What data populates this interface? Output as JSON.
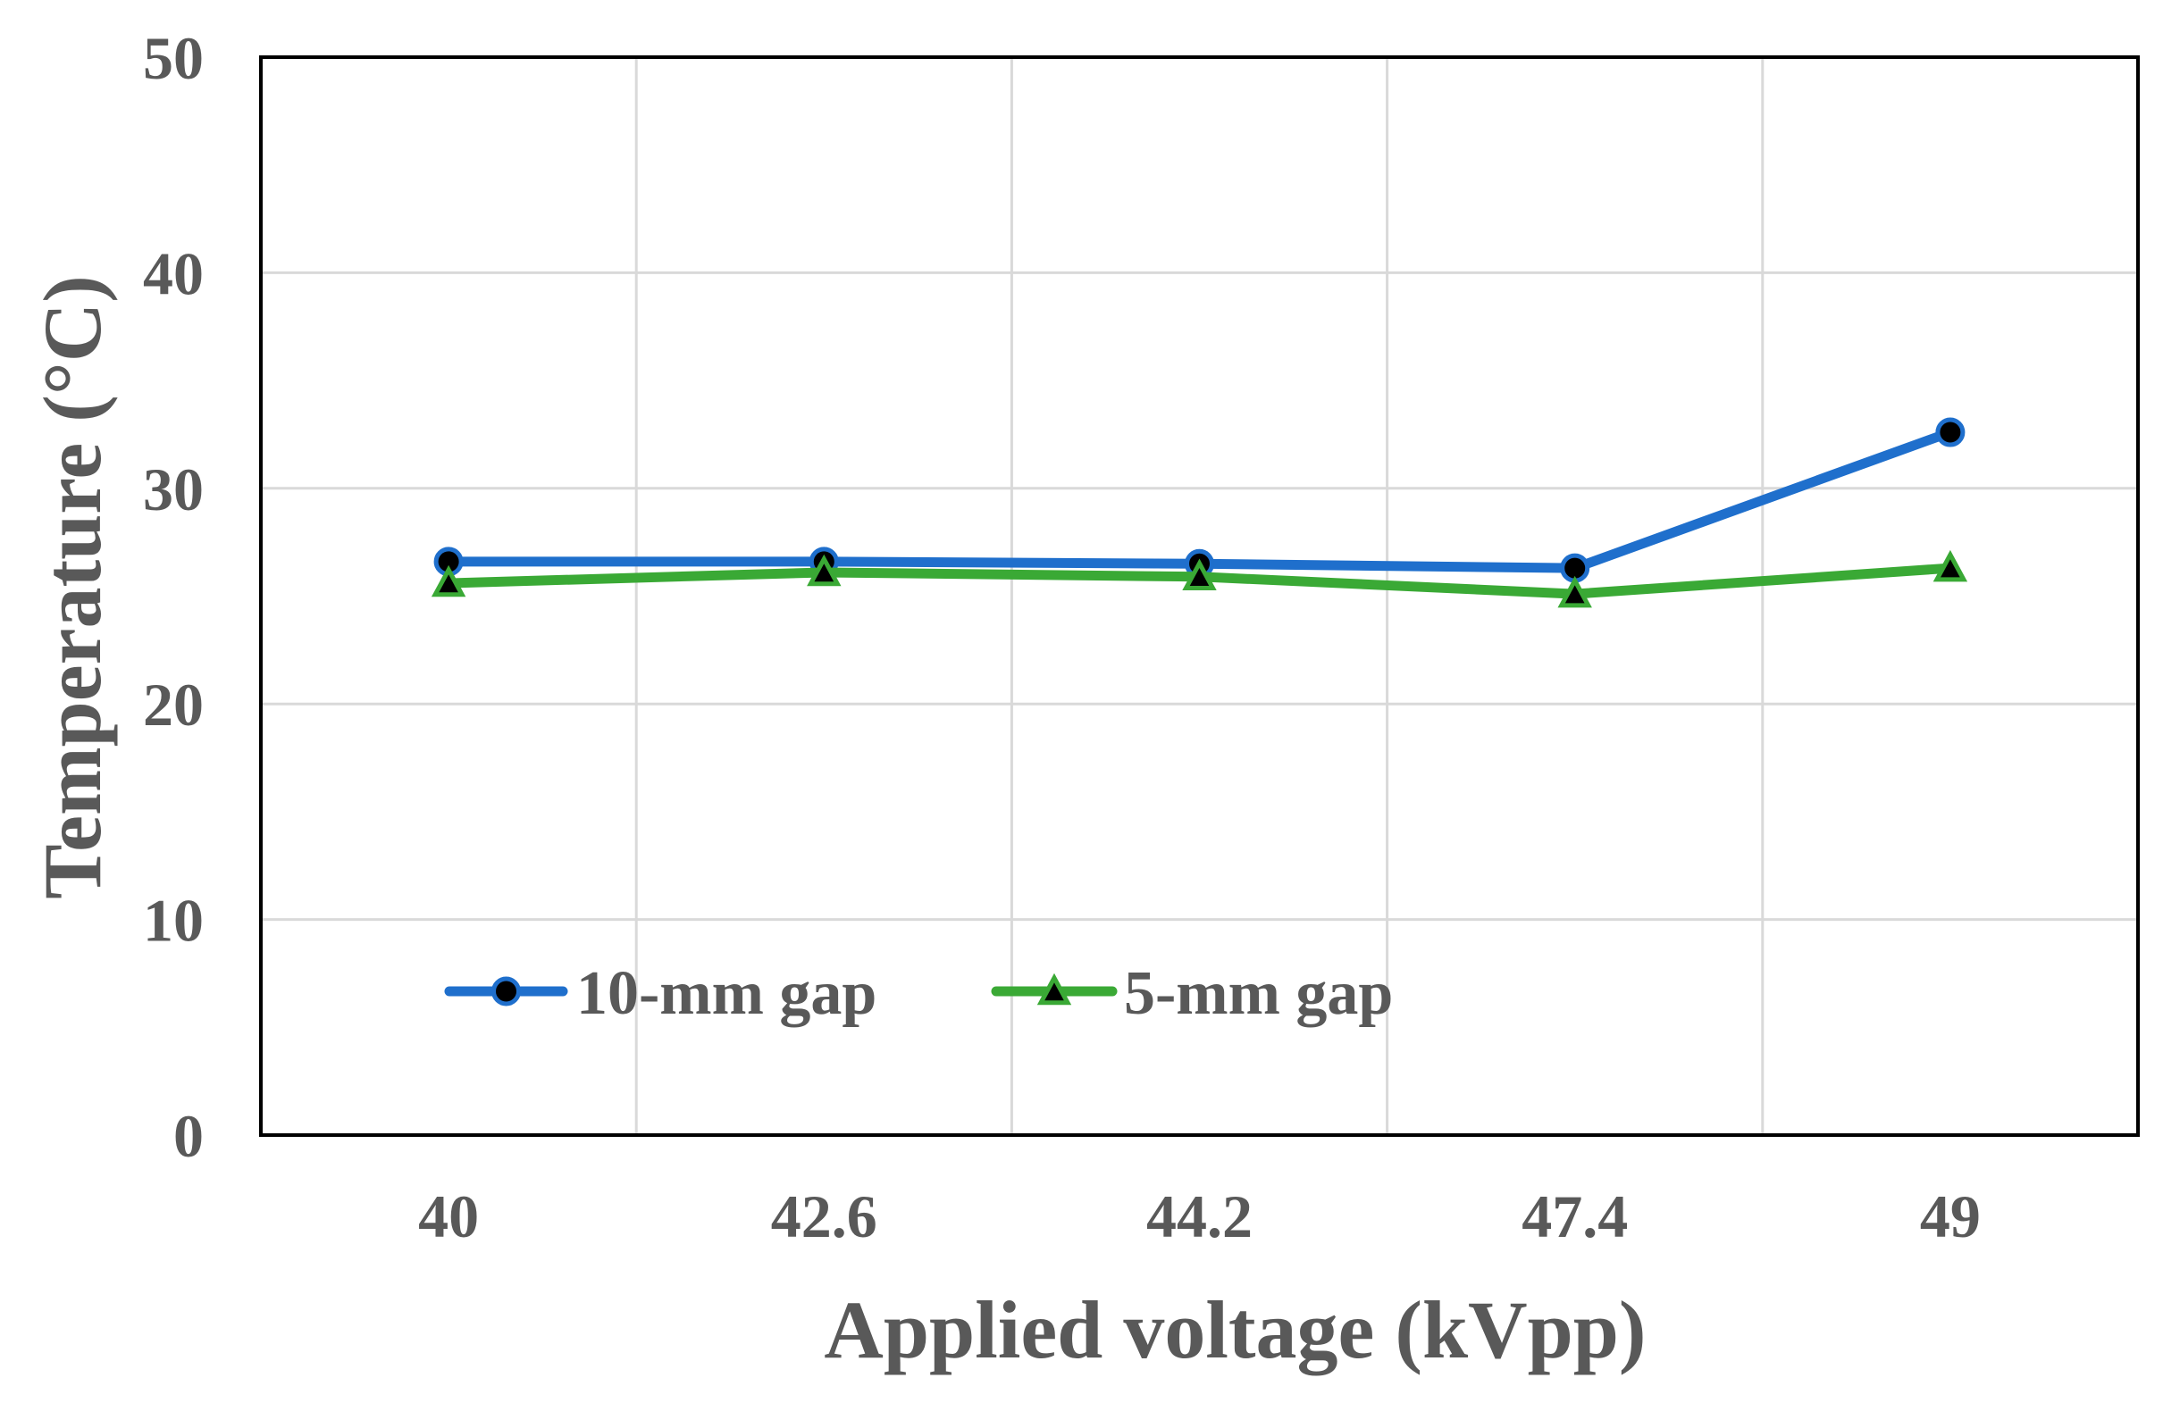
{
  "chart_data": {
    "type": "line",
    "title": "",
    "xlabel": "Applied voltage (kVpp)",
    "ylabel": "Temperature (°C)",
    "categories": [
      "40",
      "42.6",
      "44.2",
      "47.4",
      "49"
    ],
    "ylim": [
      0,
      50
    ],
    "yticks": [
      "0",
      "10",
      "20",
      "30",
      "40",
      "50"
    ],
    "grid": true,
    "legend_position": "lower-left inside",
    "series": [
      {
        "name": "10-mm gap",
        "values": [
          26.6,
          26.6,
          26.5,
          26.3,
          32.6
        ],
        "color": "#1F6FCC",
        "marker": "circle"
      },
      {
        "name": "5-mm gap",
        "values": [
          25.6,
          26.1,
          25.9,
          25.1,
          26.3
        ],
        "color": "#3AA935",
        "marker": "triangle"
      }
    ]
  }
}
